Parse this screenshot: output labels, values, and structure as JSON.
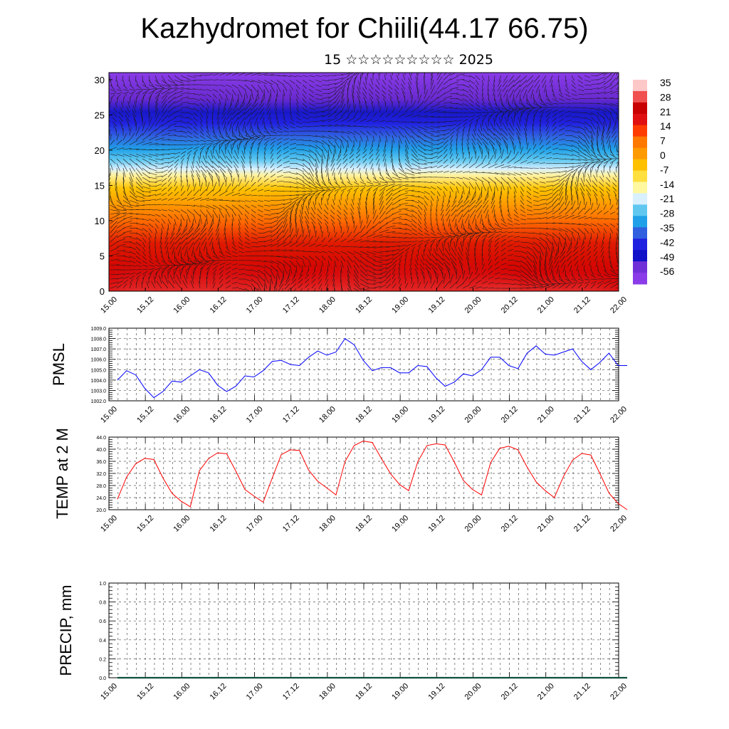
{
  "title": "Kazhydromet for Chiili(44.17 66.75)",
  "subtitle": "15 ☆☆☆☆☆☆☆☆☆ 2025",
  "colors": {
    "pmsl_line": "#0000ff",
    "temp_line": "#ff0000",
    "precip_line": "#0b4f3c",
    "colorbar": [
      "#ffc8c8",
      "#f05050",
      "#c80000",
      "#e01010",
      "#ff3c00",
      "#ff7800",
      "#ff9a00",
      "#ffc000",
      "#ffe040",
      "#fff8a0",
      "#d8f0ff",
      "#60c8f0",
      "#20a0e8",
      "#3060e0",
      "#2020e0",
      "#1010c8",
      "#7030d8",
      "#8a3ce8"
    ]
  },
  "chart_data": [
    {
      "type": "heatmap",
      "name": "cross-section",
      "x_tick_labels": [
        "15.00",
        "15.12",
        "16.00",
        "16.12",
        "17.00",
        "17.12",
        "18.00",
        "18.12",
        "19.00",
        "19.12",
        "20.00",
        "20.12",
        "21.00",
        "21.12",
        "22.00"
      ],
      "y_tick_labels": [
        "0",
        "5",
        "10",
        "15",
        "20",
        "25",
        "30"
      ],
      "ylim": [
        0,
        31
      ],
      "colorbar_labels": [
        "35",
        "28",
        "21",
        "14",
        "7",
        "0",
        "-7",
        "-14",
        "-21",
        "-28",
        "-35",
        "-42",
        "-49",
        "-56"
      ],
      "value_range": [
        -60,
        38
      ],
      "vectors": "wind barbs overlaid"
    },
    {
      "type": "line",
      "ylabel": "PMSL",
      "ylim": [
        1002.0,
        1009.0
      ],
      "y_tick_labels": [
        "1002.0",
        "1003.0",
        "1004.0",
        "1005.0",
        "1006.0",
        "1007.0",
        "1008.0",
        "1009.0"
      ],
      "x_tick_labels": [
        "15.00",
        "15.12",
        "16.00",
        "16.12",
        "17.00",
        "17.12",
        "18.00",
        "18.12",
        "19.00",
        "19.12",
        "20.00",
        "20.12",
        "21.00",
        "21.12",
        "22.00"
      ],
      "x_step_hours": 3,
      "values": [
        1004.0,
        1004.9,
        1004.5,
        1003.2,
        1002.3,
        1002.9,
        1003.9,
        1003.8,
        1004.4,
        1005.0,
        1004.7,
        1003.5,
        1002.9,
        1003.4,
        1004.4,
        1004.3,
        1004.9,
        1005.8,
        1005.9,
        1005.5,
        1005.4,
        1006.2,
        1006.8,
        1006.4,
        1006.7,
        1008.0,
        1007.4,
        1005.9,
        1004.9,
        1005.2,
        1005.2,
        1004.7,
        1004.7,
        1005.4,
        1005.3,
        1004.2,
        1003.4,
        1003.8,
        1004.6,
        1004.4,
        1005.0,
        1006.2,
        1006.2,
        1005.4,
        1005.1,
        1006.6,
        1007.3,
        1006.5,
        1006.4,
        1006.7,
        1007.0,
        1005.8,
        1005.0,
        1005.7,
        1006.6,
        1005.4,
        1005.4
      ]
    },
    {
      "type": "line",
      "ylabel": "TEMP at 2 M",
      "ylim": [
        20.0,
        44.0
      ],
      "y_tick_labels": [
        "20.0",
        "24.0",
        "28.0",
        "32.0",
        "36.0",
        "40.0",
        "44.0"
      ],
      "x_tick_labels": [
        "15.00",
        "15.12",
        "16.00",
        "16.12",
        "17.00",
        "17.12",
        "18.00",
        "18.12",
        "19.00",
        "19.12",
        "20.00",
        "20.12",
        "21.00",
        "21.12",
        "22.00"
      ],
      "x_step_hours": 3,
      "values": [
        23.5,
        30.8,
        35.2,
        37.0,
        36.6,
        30.5,
        25.4,
        22.8,
        21.0,
        32.9,
        36.9,
        38.8,
        38.5,
        32.8,
        26.7,
        24.5,
        22.5,
        30.5,
        38.2,
        39.8,
        39.6,
        33.1,
        29.4,
        27.2,
        24.9,
        35.9,
        41.2,
        42.7,
        42.2,
        36.9,
        31.9,
        28.3,
        26.3,
        35.9,
        41.2,
        41.8,
        41.4,
        35.8,
        29.7,
        26.7,
        24.9,
        35.6,
        40.3,
        41.0,
        39.8,
        34.1,
        29.2,
        26.3,
        24.0,
        31.0,
        36.4,
        38.6,
        38.1,
        32.0,
        25.5,
        22.1,
        20.0
      ]
    },
    {
      "type": "line",
      "ylabel": "PRECIP, mm",
      "ylim": [
        0.0,
        1.0
      ],
      "y_tick_labels": [
        "0.0",
        "0.2",
        "0.4",
        "0.6",
        "0.8",
        "1.0"
      ],
      "x_tick_labels": [
        "15.00",
        "15.12",
        "16.00",
        "16.12",
        "17.00",
        "17.12",
        "18.00",
        "18.12",
        "19.00",
        "19.12",
        "20.00",
        "20.12",
        "21.00",
        "21.12",
        "22.00"
      ],
      "x_step_hours": 3,
      "values": [
        0,
        0,
        0,
        0,
        0,
        0,
        0,
        0,
        0,
        0,
        0,
        0,
        0,
        0,
        0,
        0,
        0,
        0,
        0,
        0,
        0,
        0,
        0,
        0,
        0,
        0,
        0,
        0,
        0,
        0,
        0,
        0,
        0,
        0,
        0,
        0,
        0,
        0,
        0,
        0,
        0,
        0,
        0,
        0,
        0,
        0,
        0,
        0,
        0,
        0,
        0,
        0,
        0,
        0,
        0,
        0,
        0
      ]
    }
  ]
}
